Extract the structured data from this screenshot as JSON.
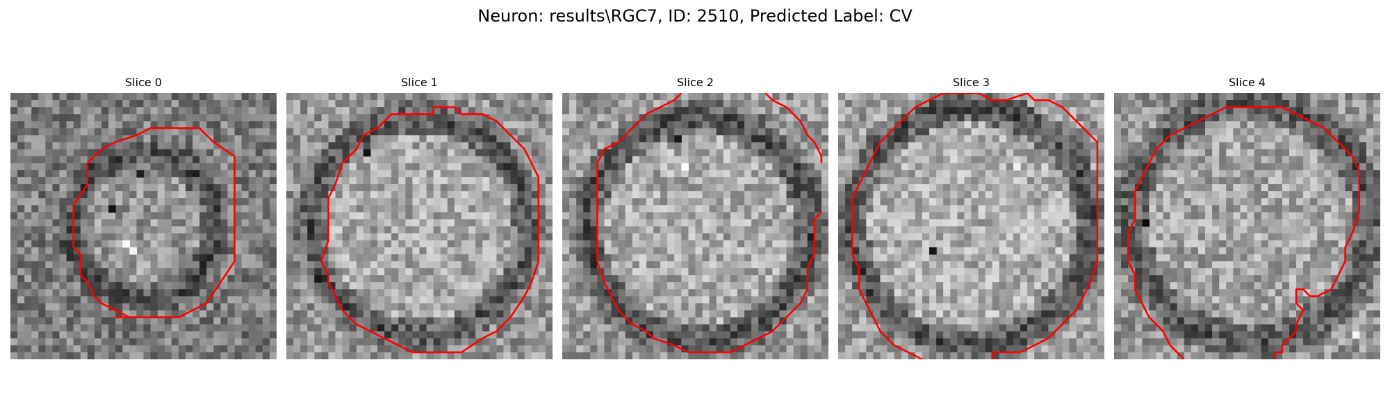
{
  "figure": {
    "title": "Neuron: results\\RGC7, ID: 2510, Predicted Label: CV"
  },
  "colors": {
    "contour": "#ff0000",
    "background": "#ffffff"
  },
  "slices": [
    {
      "label": "Slice 0"
    },
    {
      "label": "Slice 1"
    },
    {
      "label": "Slice 2"
    },
    {
      "label": "Slice 3"
    },
    {
      "label": "Slice 4"
    }
  ]
}
